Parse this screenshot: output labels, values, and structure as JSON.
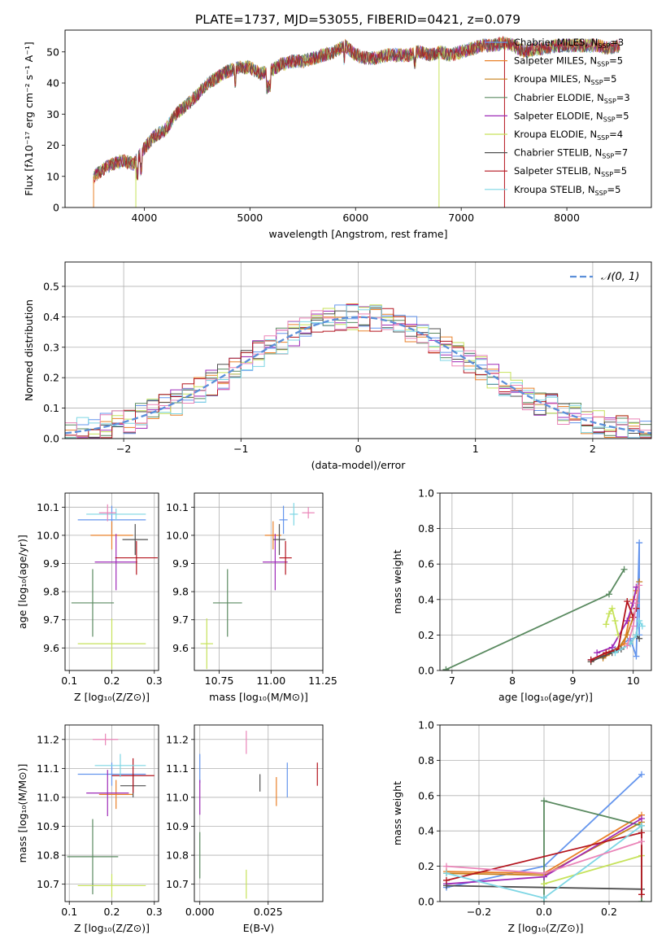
{
  "title": "PLATE=1737, MJD=53055, FIBERID=0421, z=0.079",
  "colors": [
    "#6495ed",
    "#e9812a",
    "#c8801c",
    "#5a8a60",
    "#9e2ab8",
    "#c6e25a",
    "#505050",
    "#b4141e",
    "#7dd6e4",
    "#ea84b8"
  ],
  "chart_data": [
    {
      "id": "spectrum",
      "type": "line",
      "xlabel": "wavelength [Angstrom, rest frame]",
      "ylabel": "Flux [fλ10⁻¹⁷ erg cm⁻² s⁻¹ A⁻¹]",
      "xlim": [
        3250,
        8800
      ],
      "ylim": [
        0,
        57
      ],
      "xticks": [
        4000,
        5000,
        6000,
        7000,
        8000
      ],
      "yticks": [
        0,
        10,
        20,
        30,
        40,
        50
      ],
      "legend_position": "top-right",
      "continuum": {
        "x": [
          3520,
          3600,
          3700,
          3800,
          3900,
          4000,
          4100,
          4200,
          4300,
          4400,
          4500,
          4600,
          4700,
          4800,
          4900,
          5000,
          5100,
          5200,
          5300,
          5400,
          5500,
          5600,
          5700,
          5800,
          5900,
          6000,
          6100,
          6200,
          6300,
          6400,
          6500,
          6600,
          6700,
          6800,
          6900,
          7000,
          7100,
          7200,
          7300,
          7400,
          7500,
          7600,
          7700,
          7800,
          7900,
          8000,
          8100,
          8200,
          8300,
          8400,
          8500
        ],
        "y": [
          10,
          12,
          14,
          15,
          14,
          19,
          23,
          25,
          30,
          33,
          36,
          40,
          42,
          44,
          45,
          45,
          43,
          44,
          46,
          47,
          47,
          48,
          49,
          50,
          52,
          49,
          48,
          48,
          49,
          49,
          49,
          50,
          49,
          50,
          49,
          50,
          51,
          52,
          52,
          53,
          52,
          50,
          51,
          51,
          52,
          52,
          52,
          52,
          52,
          51,
          52
        ]
      },
      "series": [
        {
          "legend": "Chabrier MILES, N",
          "sub": "SSP",
          "suffix": "=3"
        },
        {
          "legend": "Salpeter MILES, N",
          "sub": "SSP",
          "suffix": "=5"
        },
        {
          "legend": "Kroupa MILES, N",
          "sub": "SSP",
          "suffix": "=5"
        },
        {
          "legend": "Chabrier ELODIE, N",
          "sub": "SSP",
          "suffix": "=3"
        },
        {
          "legend": "Salpeter ELODIE, N",
          "sub": "SSP",
          "suffix": "=5"
        },
        {
          "legend": "Kroupa ELODIE, N",
          "sub": "SSP",
          "suffix": "=4"
        },
        {
          "legend": "Chabrier STELIB, N",
          "sub": "SSP",
          "suffix": "=7"
        },
        {
          "legend": "Salpeter STELIB, N",
          "sub": "SSP",
          "suffix": "=5"
        },
        {
          "legend": "Kroupa STELIB, N",
          "sub": "SSP",
          "suffix": "=5"
        }
      ]
    },
    {
      "id": "residuals",
      "type": "line",
      "xlabel": "(data-model)/error",
      "ylabel": "Normed distribution",
      "xlim": [
        -2.5,
        2.5
      ],
      "ylim": [
        0,
        0.58
      ],
      "xticks": [
        -2,
        -1,
        0,
        1,
        2
      ],
      "xtick_labels": [
        "−2",
        "−1",
        "0",
        "1",
        "2"
      ],
      "yticks": [
        0.0,
        0.1,
        0.2,
        0.3,
        0.4,
        0.5
      ],
      "ytick_labels": [
        "0.0",
        "0.1",
        "0.2",
        "0.3",
        "0.4",
        "0.5"
      ],
      "grid": true,
      "legend_position": "top-right",
      "legend": "𝒩(0, 1)",
      "normal": {
        "mean": 0,
        "sigma": 1
      },
      "bin_width": 0.1
    },
    {
      "id": "age-vs-Z",
      "type": "scatter",
      "xlabel": "Z [log₁₀(Z/Z⊙)]",
      "ylabel": "age  [log₁₀(age/yr)]",
      "xlim": [
        0.09,
        0.31
      ],
      "ylim": [
        9.52,
        10.15
      ],
      "xticks": [
        0.1,
        0.2,
        0.3
      ],
      "yticks": [
        9.6,
        9.7,
        9.8,
        9.9,
        10.0,
        10.1
      ],
      "xtick_labels": [
        "0.1",
        "0.2",
        "0.3"
      ],
      "ytick_labels": [
        "9.6",
        "9.7",
        "9.8",
        "9.9",
        "10.0",
        "10.1"
      ],
      "grid": true,
      "points": [
        {
          "x": 0.2,
          "xe": 0.08,
          "y": 10.055,
          "ye": 0.05,
          "c": 0
        },
        {
          "x": 0.2,
          "xe": 0.05,
          "y": 10.0,
          "ye": 0.05,
          "c": 1
        },
        {
          "x": 0.155,
          "xe": 0.05,
          "y": 9.76,
          "ye": 0.12,
          "c": 3
        },
        {
          "x": 0.21,
          "xe": 0.05,
          "y": 9.905,
          "ye": 0.1,
          "c": 4
        },
        {
          "x": 0.2,
          "xe": 0.08,
          "y": 9.615,
          "ye": 0.09,
          "c": 5
        },
        {
          "x": 0.255,
          "xe": 0.03,
          "y": 9.985,
          "ye": 0.055,
          "c": 6
        },
        {
          "x": 0.258,
          "xe": 0.05,
          "y": 9.92,
          "ye": 0.06,
          "c": 7
        },
        {
          "x": 0.21,
          "xe": 0.07,
          "y": 10.075,
          "ye": 0.02,
          "c": 8
        },
        {
          "x": 0.19,
          "xe": 0.02,
          "y": 10.08,
          "ye": 0.03,
          "c": 9
        }
      ]
    },
    {
      "id": "age-vs-mass",
      "type": "scatter",
      "xlabel": "mass [log₁₀(M/M⊙)]",
      "ylabel": "",
      "xlim": [
        10.63,
        11.25
      ],
      "ylim": [
        9.52,
        10.15
      ],
      "xticks": [
        10.75,
        11.0,
        11.25
      ],
      "yticks": [
        9.6,
        9.7,
        9.8,
        9.9,
        10.0,
        10.1
      ],
      "xtick_labels": [
        "10.75",
        "11.00",
        "11.25"
      ],
      "ytick_labels": [
        "9.6",
        "9.7",
        "9.8",
        "9.9",
        "10.0",
        "10.1"
      ],
      "grid": true,
      "points": [
        {
          "x": 11.06,
          "xe": 0.02,
          "y": 10.055,
          "ye": 0.05,
          "c": 0
        },
        {
          "x": 11.01,
          "xe": 0.04,
          "y": 10.0,
          "ye": 0.05,
          "c": 1
        },
        {
          "x": 10.79,
          "xe": 0.07,
          "y": 9.76,
          "ye": 0.12,
          "c": 3
        },
        {
          "x": 11.02,
          "xe": 0.06,
          "y": 9.905,
          "ye": 0.1,
          "c": 4
        },
        {
          "x": 10.69,
          "xe": 0.03,
          "y": 9.615,
          "ye": 0.09,
          "c": 5
        },
        {
          "x": 11.04,
          "xe": 0.03,
          "y": 9.985,
          "ye": 0.055,
          "c": 6
        },
        {
          "x": 11.07,
          "xe": 0.03,
          "y": 9.92,
          "ye": 0.06,
          "c": 7
        },
        {
          "x": 11.11,
          "xe": 0.02,
          "y": 10.075,
          "ye": 0.04,
          "c": 8
        },
        {
          "x": 11.18,
          "xe": 0.03,
          "y": 10.08,
          "ye": 0.02,
          "c": 9
        }
      ]
    },
    {
      "id": "weight-vs-age",
      "type": "line",
      "xlabel": "age  [log₁₀(age/yr)]",
      "ylabel": "mass weight",
      "xlim": [
        6.8,
        10.3
      ],
      "ylim": [
        0,
        1
      ],
      "xticks": [
        7,
        8,
        9,
        10
      ],
      "yticks": [
        0.0,
        0.2,
        0.4,
        0.6,
        0.8,
        1.0
      ],
      "xtick_labels": [
        "7",
        "8",
        "9",
        "10"
      ],
      "ytick_labels": [
        "0.0",
        "0.2",
        "0.4",
        "0.6",
        "0.8",
        "1.0"
      ],
      "grid": true,
      "lines": [
        {
          "c": 0,
          "x": [
            9.3,
            9.7,
            9.95,
            10.05,
            10.1,
            10.1
          ],
          "y": [
            0.06,
            0.12,
            0.18,
            0.08,
            0.72,
            0.2
          ]
        },
        {
          "c": 1,
          "x": [
            9.3,
            9.6,
            9.85,
            10.0,
            10.05
          ],
          "y": [
            0.05,
            0.1,
            0.15,
            0.4,
            0.45
          ]
        },
        {
          "c": 2,
          "x": [
            9.5,
            9.75,
            9.9,
            10.05,
            10.1
          ],
          "y": [
            0.07,
            0.12,
            0.2,
            0.35,
            0.5
          ]
        },
        {
          "c": 3,
          "x": [
            6.9,
            9.6,
            9.85
          ],
          "y": [
            0.005,
            0.43,
            0.57
          ]
        },
        {
          "c": 4,
          "x": [
            9.4,
            9.65,
            9.9,
            10.0,
            10.05
          ],
          "y": [
            0.1,
            0.13,
            0.28,
            0.38,
            0.47
          ]
        },
        {
          "c": 5,
          "x": [
            9.55,
            9.6,
            9.65,
            9.7,
            9.75
          ],
          "y": [
            0.26,
            0.32,
            0.35,
            0.28,
            0.2
          ]
        },
        {
          "c": 6,
          "x": [
            9.3,
            9.5,
            9.65,
            9.8,
            9.95,
            10.05,
            10.1
          ],
          "y": [
            0.05,
            0.08,
            0.1,
            0.12,
            0.15,
            0.2,
            0.18
          ]
        },
        {
          "c": 7,
          "x": [
            9.3,
            9.55,
            9.75,
            9.9,
            10.0,
            10.05
          ],
          "y": [
            0.06,
            0.1,
            0.12,
            0.39,
            0.3,
            0.35
          ]
        },
        {
          "c": 8,
          "x": [
            9.7,
            9.95,
            10.05,
            10.1,
            10.15
          ],
          "y": [
            0.1,
            0.15,
            0.2,
            0.28,
            0.25
          ]
        },
        {
          "c": 9,
          "x": [
            9.9,
            10.0,
            10.05,
            10.1
          ],
          "y": [
            0.14,
            0.25,
            0.38,
            0.48
          ]
        }
      ]
    },
    {
      "id": "mass-vs-Z",
      "type": "scatter",
      "xlabel": "Z [log₁₀(Z/Z⊙)]",
      "ylabel": "mass [log₁₀(M/M⊙)]",
      "xlim": [
        0.09,
        0.31
      ],
      "ylim": [
        10.64,
        11.25
      ],
      "xticks": [
        0.1,
        0.2,
        0.3
      ],
      "yticks": [
        10.7,
        10.8,
        10.9,
        11.0,
        11.1,
        11.2
      ],
      "xtick_labels": [
        "0.1",
        "0.2",
        "0.3"
      ],
      "ytick_labels": [
        "10.7",
        "10.8",
        "10.9",
        "11.0",
        "11.1",
        "11.2"
      ],
      "grid": true,
      "points": [
        {
          "x": 0.2,
          "xe": 0.08,
          "y": 11.08,
          "ye": 0.04,
          "c": 0
        },
        {
          "x": 0.21,
          "xe": 0.04,
          "y": 11.01,
          "ye": 0.05,
          "c": 1
        },
        {
          "x": 0.155,
          "xe": 0.06,
          "y": 10.795,
          "ye": 0.13,
          "c": 3
        },
        {
          "x": 0.19,
          "xe": 0.05,
          "y": 11.015,
          "ye": 0.08,
          "c": 4
        },
        {
          "x": 0.2,
          "xe": 0.08,
          "y": 10.695,
          "ye": 0.04,
          "c": 5
        },
        {
          "x": 0.25,
          "xe": 0.03,
          "y": 11.04,
          "ye": 0.04,
          "c": 6
        },
        {
          "x": 0.25,
          "xe": 0.05,
          "y": 11.075,
          "ye": 0.06,
          "c": 7
        },
        {
          "x": 0.22,
          "xe": 0.06,
          "y": 11.11,
          "ye": 0.04,
          "c": 8
        },
        {
          "x": 0.185,
          "xe": 0.03,
          "y": 11.2,
          "ye": 0.02,
          "c": 9
        }
      ]
    },
    {
      "id": "mass-vs-EBV",
      "type": "scatter",
      "xlabel": "E(B-V)",
      "ylabel": "",
      "xlim": [
        -0.002,
        0.045
      ],
      "ylim": [
        10.64,
        11.25
      ],
      "xticks": [
        0.0,
        0.025
      ],
      "yticks": [
        10.7,
        10.8,
        10.9,
        11.0,
        11.1,
        11.2
      ],
      "xtick_labels": [
        "0.000",
        "0.025"
      ],
      "ytick_labels": [
        "10.7",
        "10.8",
        "10.9",
        "11.0",
        "11.1",
        "11.2"
      ],
      "grid": true,
      "points": [
        {
          "x": 0.0,
          "xe": 0,
          "y": 11.1,
          "ye": 0.05,
          "c": 0
        },
        {
          "x": 0.0,
          "xe": 0,
          "y": 11.0,
          "ye": 0.06,
          "c": 4
        },
        {
          "x": 0.0,
          "xe": 0,
          "y": 10.8,
          "ye": 0.08,
          "c": 3
        },
        {
          "x": 0.017,
          "xe": 0,
          "y": 10.7,
          "ye": 0.05,
          "c": 5
        },
        {
          "x": 0.017,
          "xe": 0,
          "y": 11.19,
          "ye": 0.04,
          "c": 9
        },
        {
          "x": 0.022,
          "xe": 0,
          "y": 11.05,
          "ye": 0.03,
          "c": 6
        },
        {
          "x": 0.028,
          "xe": 0,
          "y": 11.02,
          "ye": 0.05,
          "c": 1
        },
        {
          "x": 0.032,
          "xe": 0,
          "y": 11.06,
          "ye": 0.06,
          "c": 0
        },
        {
          "x": 0.043,
          "xe": 0,
          "y": 11.08,
          "ye": 0.04,
          "c": 7
        }
      ]
    },
    {
      "id": "weight-vs-Z",
      "type": "line",
      "xlabel": "Z [log₁₀(Z/Z⊙)]",
      "ylabel": "mass weight",
      "xlim": [
        -0.32,
        0.33
      ],
      "ylim": [
        0,
        1
      ],
      "xticks": [
        -0.2,
        0.0,
        0.2
      ],
      "yticks": [
        0.0,
        0.2,
        0.4,
        0.6,
        0.8,
        1.0
      ],
      "xtick_labels": [
        "−0.2",
        "0.0",
        "0.2"
      ],
      "ytick_labels": [
        "0.0",
        "0.2",
        "0.4",
        "0.6",
        "0.8",
        "1.0"
      ],
      "grid": true,
      "lines": [
        {
          "c": 0,
          "x": [
            -0.3,
            0.0,
            0.3
          ],
          "y": [
            0.08,
            0.2,
            0.72
          ]
        },
        {
          "c": 1,
          "x": [
            -0.3,
            0.0,
            0.3
          ],
          "y": [
            0.17,
            0.16,
            0.49
          ]
        },
        {
          "c": 2,
          "x": [
            -0.3,
            0.0,
            0.3
          ],
          "y": [
            0.16,
            0.15,
            0.45
          ]
        },
        {
          "c": 3,
          "x": [
            0.0,
            0.0,
            0.3,
            0.3
          ],
          "y": [
            0.0,
            0.57,
            0.43,
            0.0
          ]
        },
        {
          "c": 4,
          "x": [
            -0.3,
            0.0,
            0.3
          ],
          "y": [
            0.1,
            0.14,
            0.47
          ]
        },
        {
          "c": 5,
          "x": [
            0.0,
            0.3
          ],
          "y": [
            0.1,
            0.26
          ]
        },
        {
          "c": 6,
          "x": [
            -0.3,
            0.3
          ],
          "y": [
            0.09,
            0.07
          ]
        },
        {
          "c": 7,
          "x": [
            -0.3,
            0.3,
            0.3
          ],
          "y": [
            0.12,
            0.39,
            0.04
          ]
        },
        {
          "c": 8,
          "x": [
            -0.3,
            0.0,
            0.3
          ],
          "y": [
            0.16,
            0.02,
            0.43
          ]
        },
        {
          "c": 9,
          "x": [
            -0.3,
            0.0,
            0.3
          ],
          "y": [
            0.2,
            0.16,
            0.34
          ]
        }
      ]
    }
  ]
}
